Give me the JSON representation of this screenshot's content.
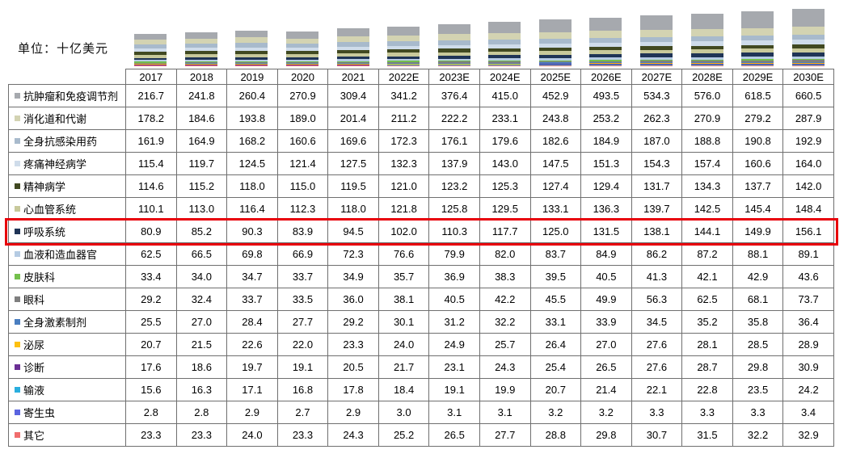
{
  "unit_label": "单位：十亿美元",
  "chart_data": {
    "type": "bar",
    "stacked": true,
    "title": "单位：十亿美元",
    "unit": "十亿美元",
    "legend_position": "table-rows",
    "grid": false,
    "categories": [
      "2017",
      "2018",
      "2019",
      "2020",
      "2021",
      "2022E",
      "2023E",
      "2024E",
      "2025E",
      "2026E",
      "2027E",
      "2028E",
      "2029E",
      "2030E"
    ],
    "series": [
      {
        "name": "抗肿瘤和免疫调节剂",
        "color": "#a6a9ae",
        "values": [
          216.7,
          241.8,
          260.4,
          270.9,
          309.4,
          341.2,
          376.4,
          415.0,
          452.9,
          493.5,
          534.3,
          576.0,
          618.5,
          660.5
        ]
      },
      {
        "name": "消化道和代谢",
        "color": "#d3d3b2",
        "values": [
          178.2,
          184.6,
          193.8,
          189.0,
          201.4,
          211.2,
          222.2,
          233.1,
          243.8,
          253.2,
          262.3,
          270.9,
          279.2,
          287.9
        ]
      },
      {
        "name": "全身抗感染用药",
        "color": "#a8bacc",
        "values": [
          161.9,
          164.9,
          168.2,
          160.6,
          169.6,
          172.3,
          176.1,
          179.6,
          182.6,
          184.9,
          187.0,
          188.8,
          190.8,
          192.9
        ]
      },
      {
        "name": "疼痛神经病学",
        "color": "#cfdcea",
        "values": [
          115.4,
          119.7,
          124.5,
          121.4,
          127.5,
          132.3,
          137.9,
          143.0,
          147.5,
          151.3,
          154.3,
          157.4,
          160.6,
          164.0
        ]
      },
      {
        "name": "精神病学",
        "color": "#414921",
        "values": [
          114.6,
          115.2,
          118.0,
          115.0,
          119.5,
          121.0,
          123.2,
          125.3,
          127.4,
          129.4,
          131.7,
          134.3,
          137.7,
          142.0
        ]
      },
      {
        "name": "心血管系统",
        "color": "#c8c99b",
        "values": [
          110.1,
          113.0,
          116.4,
          112.3,
          118.0,
          121.8,
          125.8,
          129.5,
          133.1,
          136.3,
          139.7,
          142.5,
          145.4,
          148.4
        ]
      },
      {
        "name": "呼吸系统",
        "color": "#1f3456",
        "values": [
          80.9,
          85.2,
          90.3,
          83.9,
          94.5,
          102.0,
          110.3,
          117.7,
          125.0,
          131.5,
          138.1,
          144.1,
          149.9,
          156.1
        ],
        "highlighted": true
      },
      {
        "name": "血液和造血器官",
        "color": "#b5cbe3",
        "values": [
          62.5,
          66.5,
          69.8,
          66.9,
          72.3,
          76.6,
          79.9,
          82.0,
          83.7,
          84.9,
          86.2,
          87.2,
          88.1,
          89.1
        ]
      },
      {
        "name": "皮肤科",
        "color": "#74c04c",
        "values": [
          33.4,
          34.0,
          34.7,
          33.7,
          34.9,
          35.7,
          36.9,
          38.3,
          39.5,
          40.5,
          41.3,
          42.1,
          42.9,
          43.6
        ]
      },
      {
        "name": "眼科",
        "color": "#7f7f7f",
        "values": [
          29.2,
          32.4,
          33.7,
          33.5,
          36.0,
          38.1,
          40.5,
          42.2,
          45.5,
          49.9,
          56.3,
          62.5,
          68.1,
          73.7
        ]
      },
      {
        "name": "全身激素制剂",
        "color": "#4a7ec0",
        "values": [
          25.5,
          27.0,
          28.4,
          27.7,
          29.2,
          30.1,
          31.2,
          32.2,
          33.1,
          33.9,
          34.5,
          35.2,
          35.8,
          36.4
        ]
      },
      {
        "name": "泌尿",
        "color": "#fdc010",
        "values": [
          20.7,
          21.5,
          22.6,
          22.0,
          23.3,
          24.0,
          24.9,
          25.7,
          26.4,
          27.0,
          27.6,
          28.1,
          28.5,
          28.9
        ]
      },
      {
        "name": "诊断",
        "color": "#6a2e94",
        "values": [
          17.6,
          18.6,
          19.7,
          19.1,
          20.5,
          21.7,
          23.1,
          24.3,
          25.4,
          26.5,
          27.6,
          28.7,
          29.8,
          30.9
        ]
      },
      {
        "name": "输液",
        "color": "#2aaede",
        "values": [
          15.6,
          16.3,
          17.1,
          16.8,
          17.8,
          18.4,
          19.1,
          19.9,
          20.7,
          21.4,
          22.1,
          22.8,
          23.5,
          24.2
        ]
      },
      {
        "name": "寄生虫",
        "color": "#5a64e0",
        "values": [
          2.8,
          2.8,
          2.9,
          2.7,
          2.9,
          3.0,
          3.1,
          3.1,
          3.2,
          3.2,
          3.3,
          3.3,
          3.3,
          3.4
        ]
      },
      {
        "name": "其它",
        "color": "#f06d6d",
        "values": [
          23.3,
          23.3,
          24.0,
          23.3,
          24.3,
          25.2,
          26.5,
          27.7,
          28.8,
          29.8,
          30.7,
          31.5,
          32.2,
          32.9
        ]
      }
    ],
    "highlight": {
      "row": "呼吸系统",
      "color": "#e8000a"
    }
  }
}
